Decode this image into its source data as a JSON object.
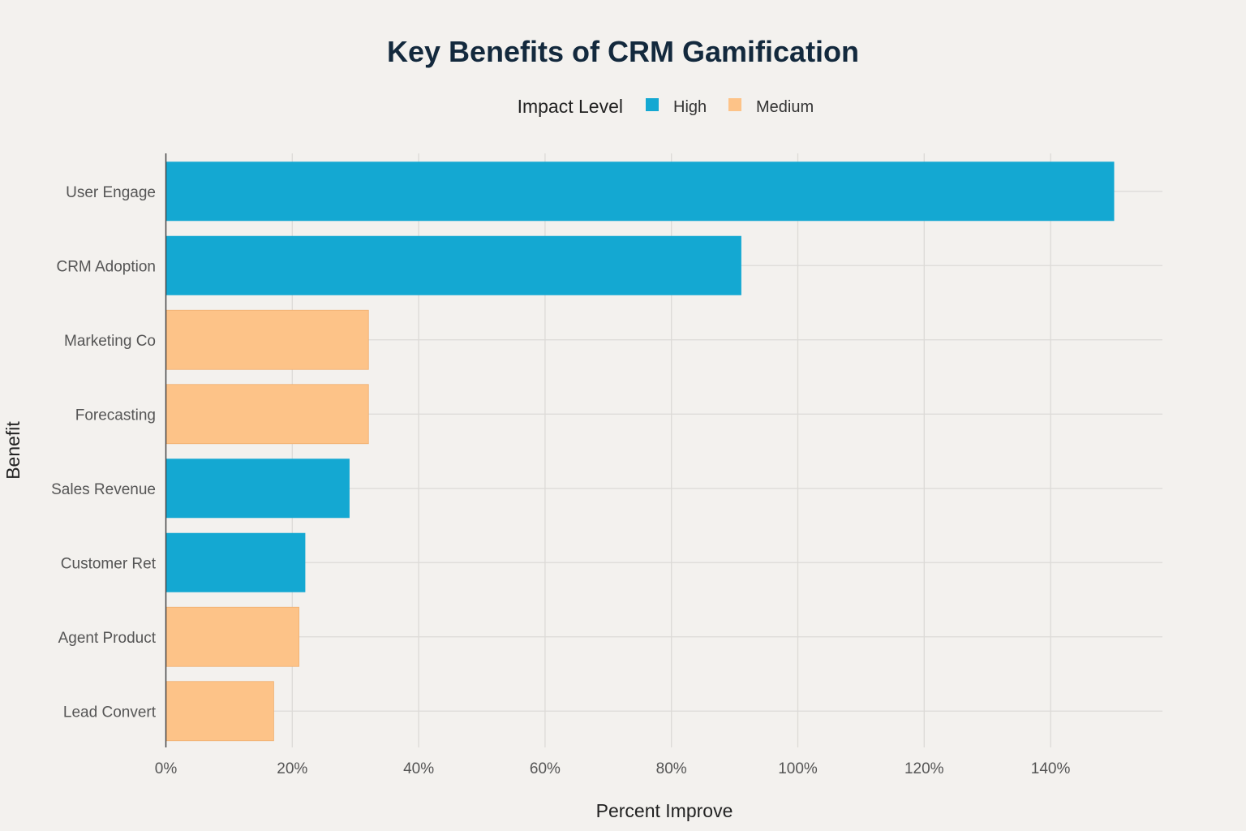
{
  "chart_data": {
    "type": "bar",
    "orientation": "horizontal",
    "title": "Key Benefits of CRM Gamification",
    "xlabel": "Percent Improve",
    "ylabel": "Benefit",
    "legend_title": "Impact Level",
    "legend_position": "top-center",
    "categories": [
      "User Engage",
      "CRM Adoption",
      "Marketing Co",
      "Forecasting",
      "Sales Revenue",
      "Customer Ret",
      "Agent Product",
      "Lead Convert"
    ],
    "values": [
      150,
      91,
      32,
      32,
      29,
      22,
      21,
      17
    ],
    "impact": [
      "High",
      "High",
      "Medium",
      "Medium",
      "High",
      "High",
      "Medium",
      "Medium"
    ],
    "series": [
      {
        "name": "High",
        "color": "#14a8d2"
      },
      {
        "name": "Medium",
        "color": "#fdc388"
      }
    ],
    "xticks": [
      "0%",
      "20%",
      "40%",
      "60%",
      "80%",
      "100%",
      "120%",
      "140%"
    ],
    "xlim": [
      0,
      158
    ],
    "grid": true
  }
}
